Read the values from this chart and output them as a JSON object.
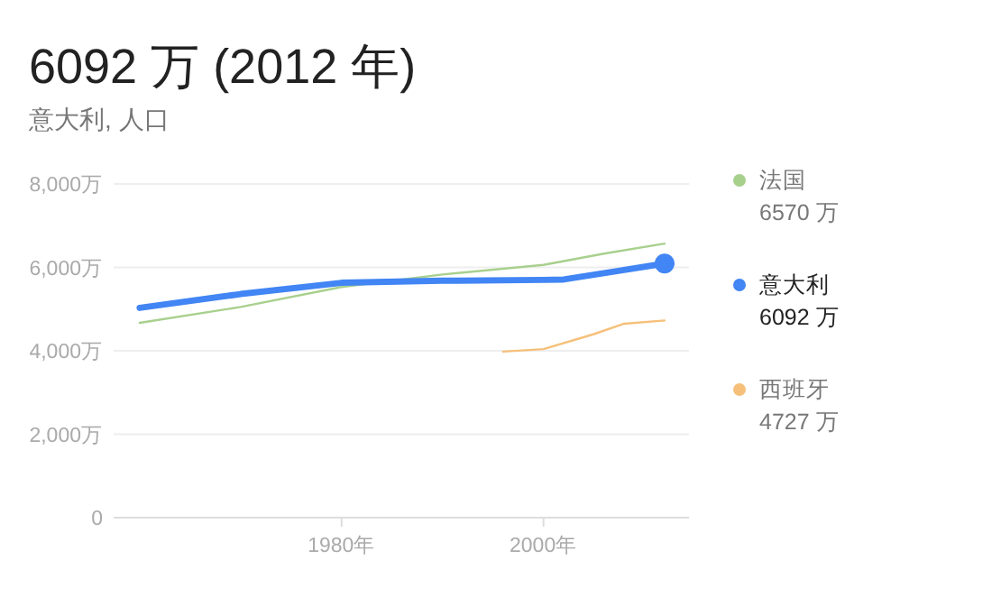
{
  "chart_data": {
    "type": "line",
    "title": "6092 万 (2012 年)",
    "subtitle": "意大利, 人口",
    "ylim": [
      0,
      8000
    ],
    "yticks": [
      {
        "value": 0,
        "label": "0"
      },
      {
        "value": 2000,
        "label": "2,000万"
      },
      {
        "value": 4000,
        "label": "4,000万"
      },
      {
        "value": 6000,
        "label": "6,000万"
      },
      {
        "value": 8000,
        "label": "8,000万"
      }
    ],
    "xlim": [
      "1957-06",
      "2014-06"
    ],
    "xticks": [
      {
        "value": "1980",
        "label": "1980年"
      },
      {
        "value": "2000",
        "label": "2000年"
      }
    ],
    "grid": "y",
    "legend": "right",
    "series": [
      {
        "name": "法国",
        "color": "#a8d08d",
        "x": [
          "1960",
          "1970",
          "1980",
          "1990",
          "2000",
          "2006",
          "2012"
        ],
        "values": [
          4670,
          5050,
          5530,
          5830,
          6060,
          6330,
          6570
        ]
      },
      {
        "name": "意大利",
        "color": "#4285f4",
        "x": [
          "1960",
          "1970",
          "1980",
          "1990",
          "2000",
          "2002",
          "2007",
          "2012"
        ],
        "values": [
          5030,
          5360,
          5630,
          5680,
          5700,
          5710,
          5900,
          6092
        ]
      },
      {
        "name": "西班牙",
        "color": "#f6c07a",
        "x": [
          "1996",
          "2000",
          "2005",
          "2008",
          "2012"
        ],
        "values": [
          3980,
          4040,
          4400,
          4650,
          4727
        ]
      }
    ],
    "annotations": [
      "6570 万",
      "6092 万",
      "4727 万"
    ]
  }
}
